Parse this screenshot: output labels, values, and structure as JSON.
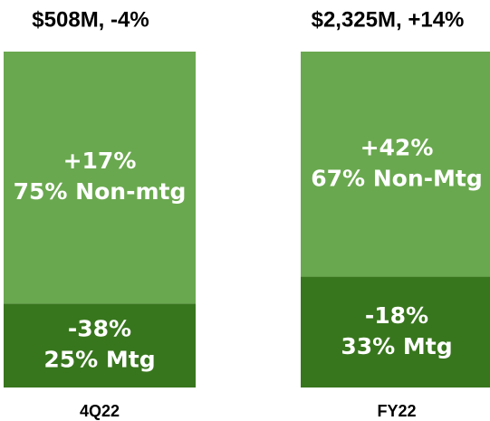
{
  "chart_data": {
    "type": "bar",
    "stacked": true,
    "categories": [
      "4Q22",
      "FY22"
    ],
    "bar_titles": [
      "$508M, -4%",
      "$2,325M, +14%"
    ],
    "ylim": [
      0,
      100
    ],
    "series": [
      {
        "color": "#38761d",
        "values": [
          25,
          33
        ],
        "value_labels": [
          "25% Mtg",
          "33% Mtg"
        ],
        "growth_labels": [
          "-38%",
          "-18%"
        ]
      },
      {
        "color": "#6aa84f",
        "values": [
          75,
          67
        ],
        "value_labels": [
          "75% Non-mtg",
          "67% Non-Mtg"
        ],
        "growth_labels": [
          "+17%",
          "+42%"
        ]
      }
    ]
  }
}
